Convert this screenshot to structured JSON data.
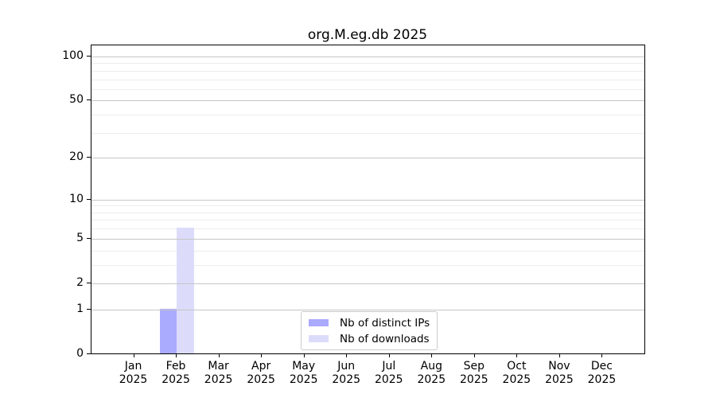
{
  "chart_data": {
    "type": "bar",
    "title": "org.M.eg.db 2025",
    "x_categories": [
      "Jan",
      "Feb",
      "Mar",
      "Apr",
      "May",
      "Jun",
      "Jul",
      "Aug",
      "Sep",
      "Oct",
      "Nov",
      "Dec"
    ],
    "x_year": "2025",
    "series": [
      {
        "name": "Nb of distinct IPs",
        "color": "#aaaaff",
        "values": [
          0,
          1,
          0,
          0,
          0,
          0,
          0,
          0,
          0,
          0,
          0,
          0
        ]
      },
      {
        "name": "Nb of downloads",
        "color": "#dcdcfa",
        "values": [
          0,
          6,
          0,
          0,
          0,
          0,
          0,
          0,
          0,
          0,
          0,
          0
        ]
      }
    ],
    "y_scale": "log10(1+v)",
    "y_major_ticks": [
      0,
      1,
      2,
      5,
      10,
      20,
      50,
      100
    ],
    "y_minor_gridlines": [
      3,
      4,
      6,
      7,
      8,
      9,
      30,
      40,
      60,
      70,
      80,
      90
    ],
    "ylim": [
      0,
      119
    ],
    "grid": "horizontal",
    "legend_position": "lower center"
  },
  "colors": {
    "background": "#ffffff",
    "axis": "#000000",
    "major_grid": "#c6c6c6",
    "minor_grid": "#ececec",
    "legend_border": "#cccccc"
  }
}
